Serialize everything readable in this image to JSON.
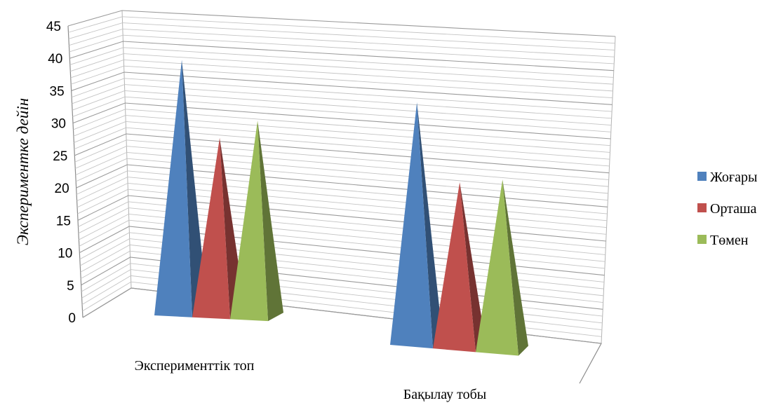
{
  "chart_data": {
    "type": "bar",
    "subtype": "3d-pyramid",
    "ylabel": "Экспериментке дейін",
    "xlabel": "",
    "ylim": [
      0,
      45
    ],
    "yticks": [
      "0",
      "5",
      "10",
      "15",
      "20",
      "25",
      "30",
      "35",
      "40",
      "45"
    ],
    "categories": [
      "Эксперименттік топ",
      "Бақылау тобы"
    ],
    "series": [
      {
        "name": "Жоғары",
        "values": [
          40,
          38
        ],
        "color": "#4F81BD"
      },
      {
        "name": "Орташа",
        "values": [
          28,
          26
        ],
        "color": "#C0504D"
      },
      {
        "name": "Төмен",
        "values": [
          31,
          27
        ],
        "color": "#9BBB59"
      }
    ],
    "grid": true,
    "legend_position": "right"
  }
}
